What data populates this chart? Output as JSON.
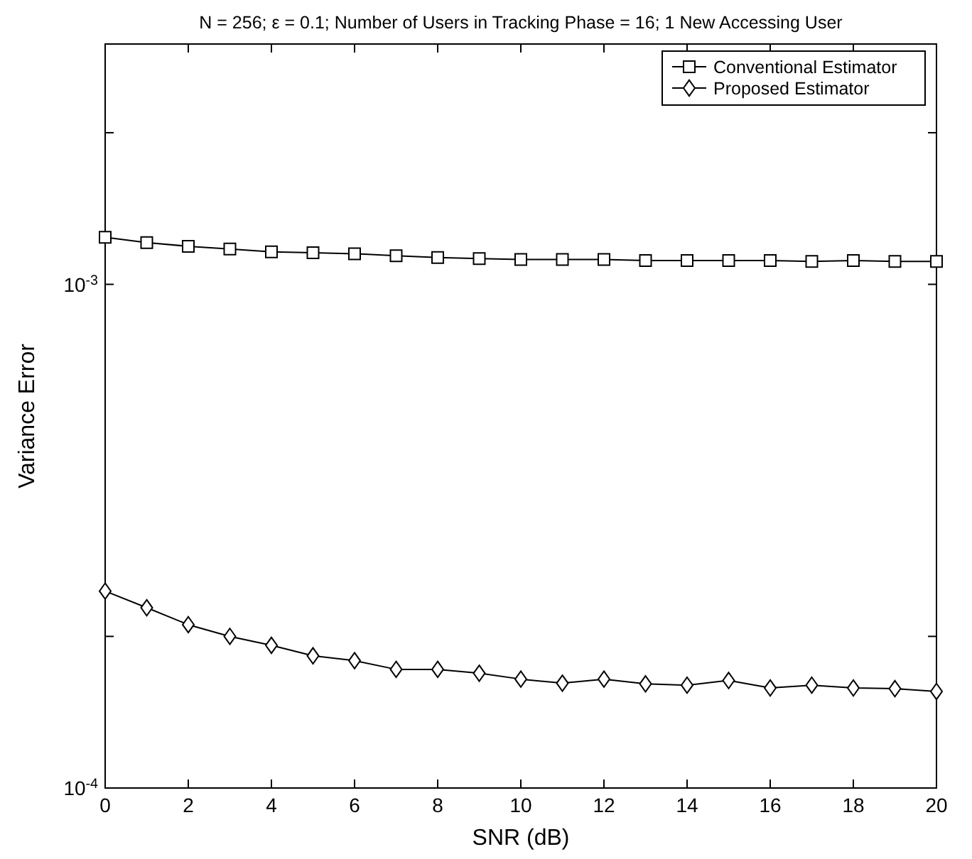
{
  "chart_data": {
    "type": "line",
    "title": "N = 256; ε = 0.1; Number of Users in Tracking Phase = 16; 1 New Accessing User",
    "xlabel": "SNR (dB)",
    "ylabel": "Variance Error",
    "x": [
      0,
      1,
      2,
      3,
      4,
      5,
      6,
      7,
      8,
      9,
      10,
      11,
      12,
      13,
      14,
      15,
      16,
      17,
      18,
      19,
      20
    ],
    "series": [
      {
        "name": "Conventional Estimator",
        "color": "#000000",
        "marker": "square",
        "values": [
          0.00124,
          0.00121,
          0.00119,
          0.001175,
          0.00116,
          0.001155,
          0.00115,
          0.00114,
          0.00113,
          0.001125,
          0.00112,
          0.00112,
          0.00112,
          0.001115,
          0.001115,
          0.001115,
          0.001115,
          0.00111,
          0.001115,
          0.00111,
          0.00111
        ]
      },
      {
        "name": "Proposed Estimator",
        "color": "#000000",
        "marker": "diamond",
        "values": [
          0.000246,
          0.000228,
          0.000211,
          0.0002,
          0.000192,
          0.000183,
          0.000179,
          0.000172,
          0.000172,
          0.000169,
          0.0001645,
          0.0001615,
          0.0001645,
          0.000161,
          0.00016,
          0.0001635,
          0.000158,
          0.00016,
          0.000158,
          0.0001575,
          0.0001555
        ]
      }
    ],
    "xlim": [
      0,
      20
    ],
    "xticks": [
      0,
      2,
      4,
      6,
      8,
      10,
      12,
      14,
      16,
      18,
      20
    ],
    "ylim": [
      0.0001,
      0.003
    ],
    "yticks": [
      {
        "value": 0.0001,
        "label": "10$^{-4}$"
      },
      {
        "value": 0.0002,
        "label": null
      },
      {
        "value": 0.001,
        "label": "10$^{-3}$"
      },
      {
        "value": 0.002,
        "label": null
      }
    ],
    "log": "y",
    "grid": false,
    "legend": "top right",
    "line_style": "solid"
  }
}
